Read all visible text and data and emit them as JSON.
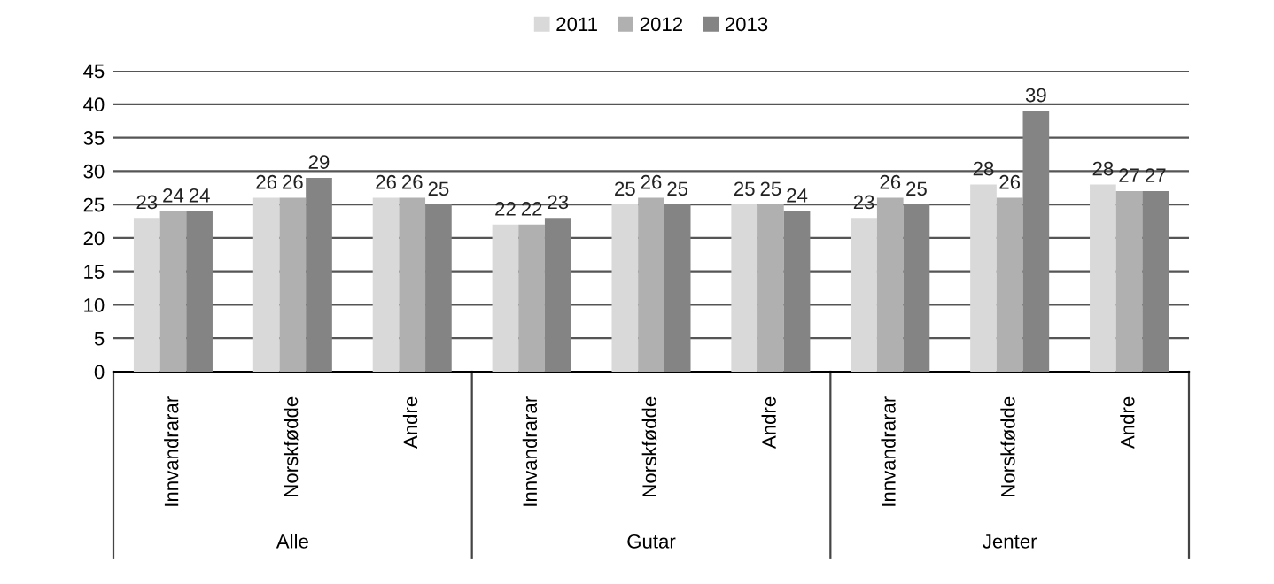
{
  "chart_data": {
    "type": "bar",
    "categories": [
      "Innvandrarar",
      "Norskfødde",
      "Andre",
      "Innvandrarar",
      "Norskfødde",
      "Andre",
      "Innvandrarar",
      "Norskfødde",
      "Andre"
    ],
    "series": [
      {
        "name": "2011",
        "color": "#d9d9d9",
        "values": [
          23,
          26,
          26,
          22,
          25,
          25,
          23,
          28,
          28
        ]
      },
      {
        "name": "2012",
        "color": "#b0b0b0",
        "values": [
          24,
          26,
          26,
          22,
          26,
          25,
          26,
          26,
          27
        ]
      },
      {
        "name": "2013",
        "color": "#848484",
        "values": [
          24,
          29,
          25,
          23,
          25,
          24,
          25,
          39,
          27
        ]
      }
    ],
    "annotations": [
      "Alle",
      "Gutar",
      "Jenter"
    ],
    "ylim": [
      0,
      45
    ],
    "yticks": [
      0,
      5,
      10,
      15,
      20,
      25,
      30,
      35,
      40,
      45
    ],
    "grid": "y",
    "legend": "top",
    "data_labels": true
  }
}
